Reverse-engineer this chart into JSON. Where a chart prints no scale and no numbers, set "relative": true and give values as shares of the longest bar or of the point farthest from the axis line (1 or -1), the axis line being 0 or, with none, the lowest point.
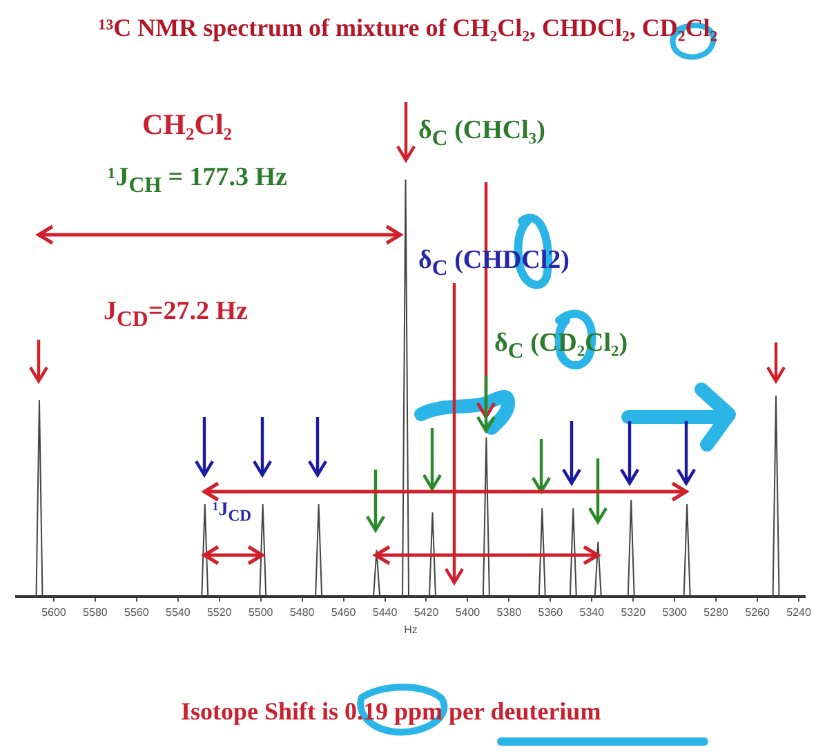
{
  "chart_data": {
    "type": "line",
    "title": "¹³C NMR spectrum of mixture of CH₂Cl₂, CHDCl₂, CD₂Cl₂",
    "xlabel": "Hz",
    "relative": true,
    "annotations": [
      "CH₂Cl₂",
      "¹J$_{CH}$ = 177.3 Hz",
      "J$_{CD}$=27.2 Hz",
      "δ$_{C}$ (CHCl₃)",
      "δ$_{C}$ (CHDCl2)",
      "δ$_{C}$ (CD₂Cl₂)",
      "¹J$_{CD}$",
      "Isotope Shift is 0.19 ppm per deuterium"
    ],
    "xlim": [
      5618,
      5237
    ],
    "xticks": [
      5600,
      5580,
      5560,
      5540,
      5520,
      5500,
      5480,
      5460,
      5440,
      5420,
      5400,
      5380,
      5360,
      5340,
      5320,
      5300,
      5280,
      5260,
      5240
    ],
    "series": [
      {
        "color": "#444444",
        "x": [
          5618,
          5608.5,
          5607,
          5605.5,
          5528.5,
          5527,
          5525.5,
          5500.5,
          5499,
          5497.5,
          5473.5,
          5472,
          5470.5,
          5445.5,
          5444,
          5442.5,
          5431.5,
          5430,
          5428.5,
          5418.5,
          5417,
          5415.5,
          5392.5,
          5391,
          5389.5,
          5365.5,
          5364,
          5362.5,
          5350.5,
          5349,
          5347.5,
          5338.5,
          5337,
          5335.5,
          5322.5,
          5321,
          5319.5,
          5295.5,
          5294,
          5292.5,
          5252.5,
          5251,
          5249.5,
          5237
        ],
        "values": [
          0,
          0,
          0.47,
          0,
          0,
          0.22,
          0,
          0,
          0.22,
          0,
          0,
          0.22,
          0,
          0,
          0.11,
          0,
          0,
          1,
          0,
          0,
          0.2,
          0,
          0,
          0.38,
          0,
          0,
          0.21,
          0,
          0,
          0.21,
          0,
          0,
          0.13,
          0,
          0,
          0.23,
          0,
          0,
          0.22,
          0,
          0,
          0.48,
          0,
          0
        ]
      }
    ]
  }
}
